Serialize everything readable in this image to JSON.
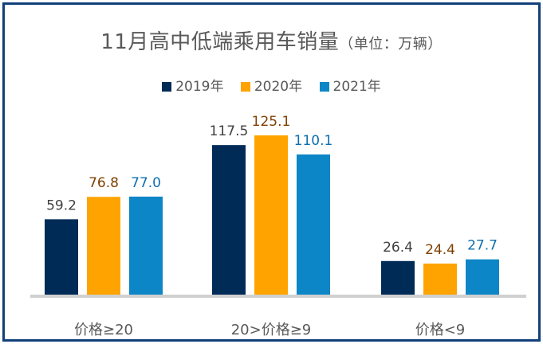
{
  "chart_data": {
    "type": "bar",
    "title": "11月高中低端乘用车销量",
    "title_unit": "（单位：万辆）",
    "categories": [
      "价格≥20",
      "20>价格≥9",
      "价格<9"
    ],
    "series": [
      {
        "name": "2019年",
        "values": [
          59.2,
          117.5,
          26.4
        ],
        "color": "#002b57",
        "label_color": "#404040"
      },
      {
        "name": "2020年",
        "values": [
          76.8,
          125.1,
          24.4
        ],
        "color": "#ffa300",
        "label_color": "#7f3f00"
      },
      {
        "name": "2021年",
        "values": [
          77.0,
          110.1,
          27.7
        ],
        "color": "#0c86c6",
        "label_color": "#0c6fae"
      }
    ],
    "ylim": [
      0,
      125.1
    ],
    "legend_position": "top",
    "grid": false,
    "data_labels": true
  }
}
